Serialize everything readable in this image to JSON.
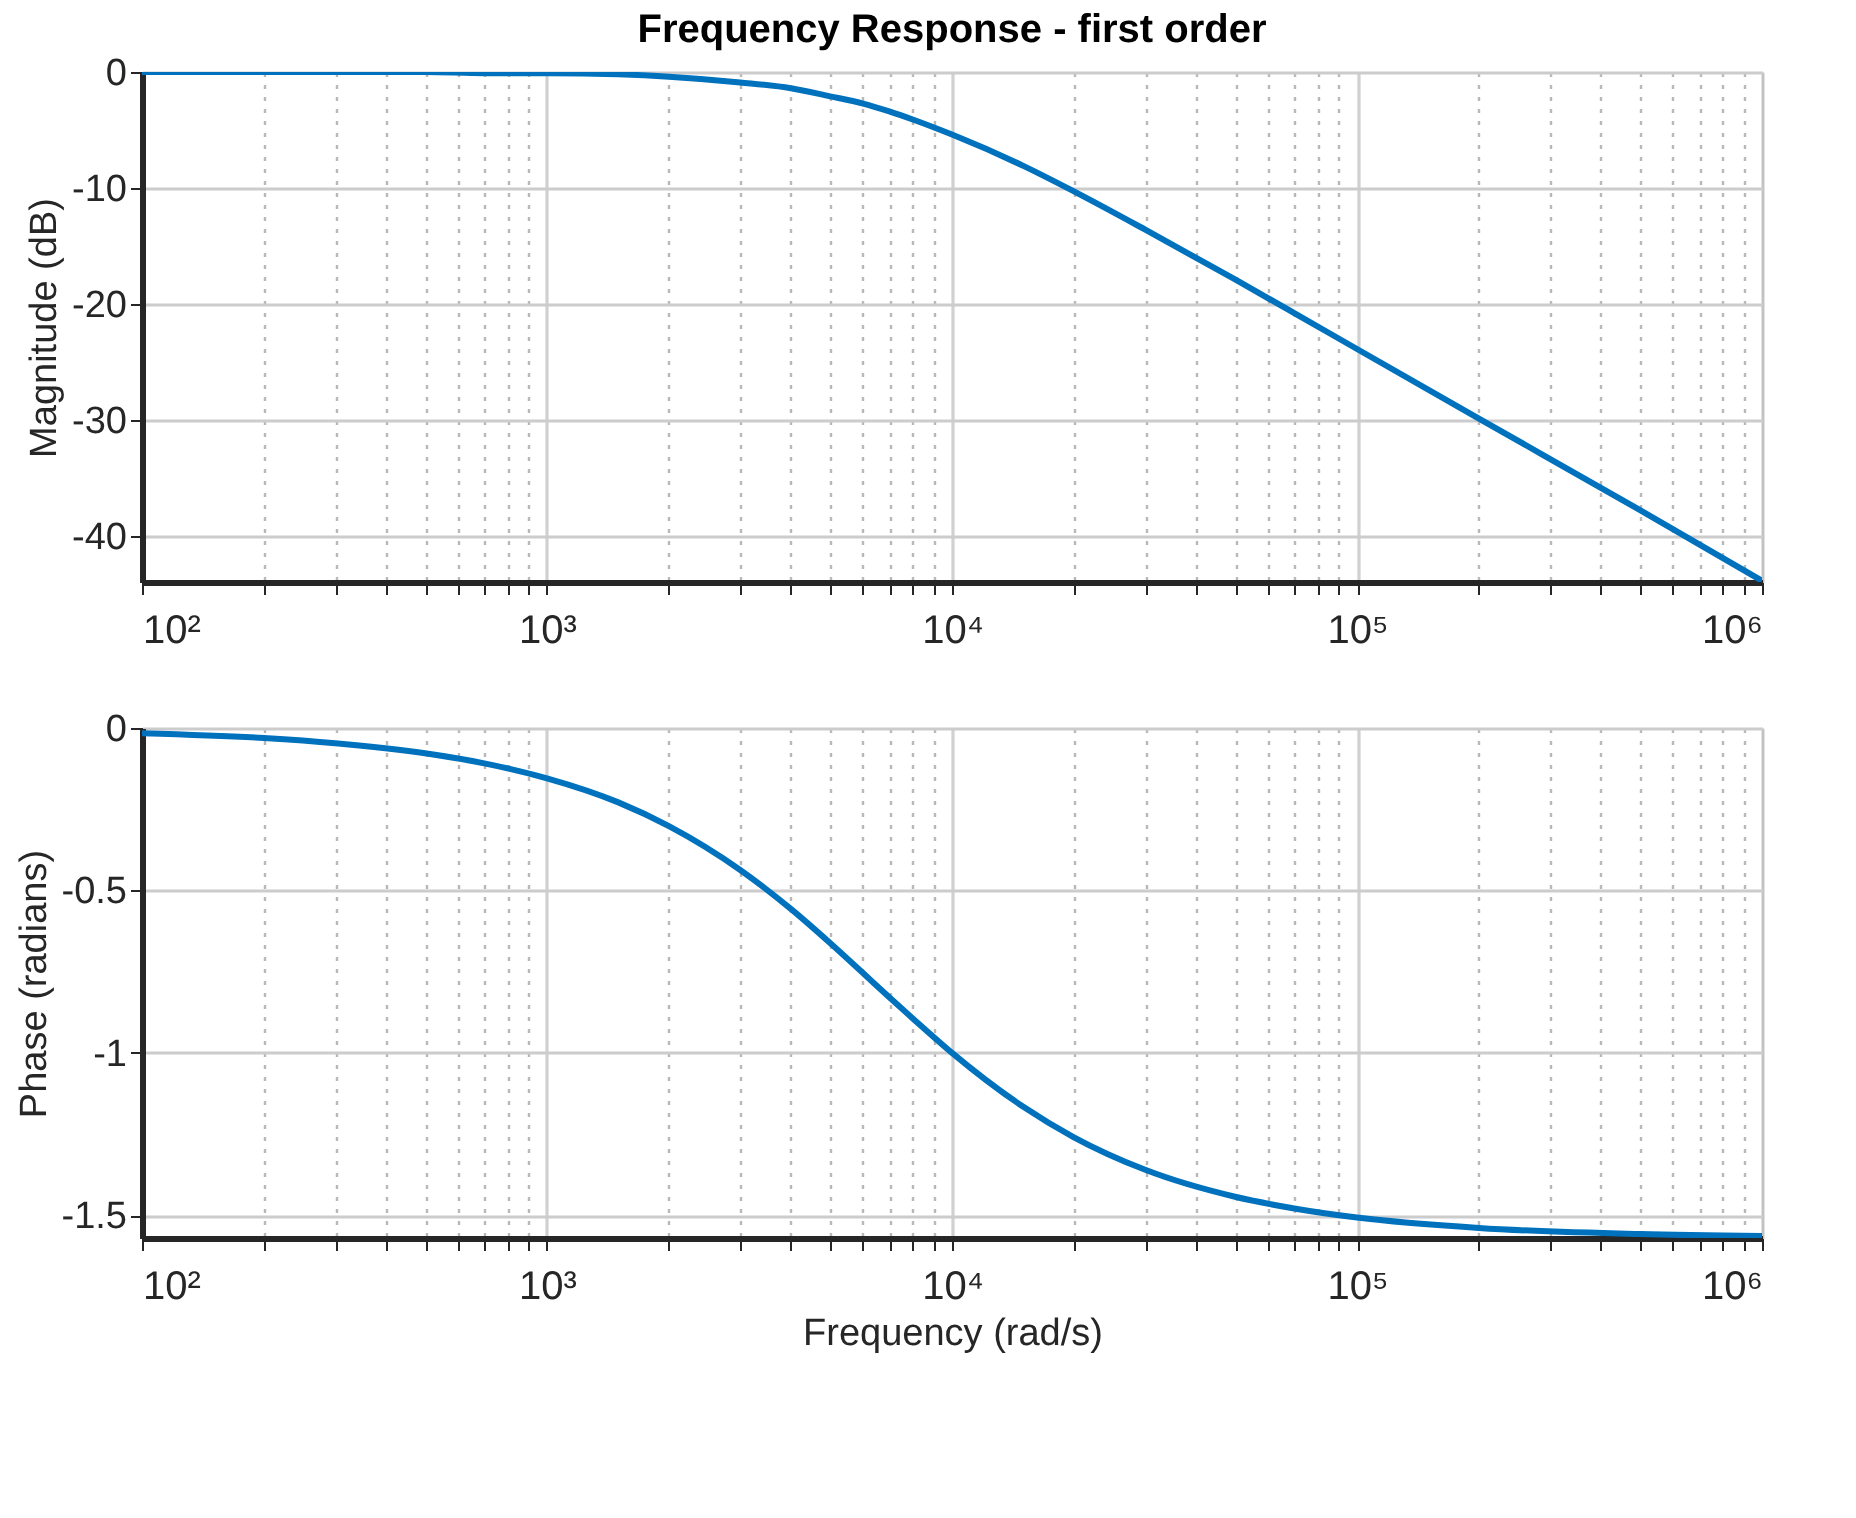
{
  "chart_data": [
    {
      "type": "line",
      "title": "Frequency Response - first order",
      "ylabel": "Magnitude (dB)",
      "log": "x",
      "grid": true,
      "x": [
        100,
        200,
        300,
        500,
        700,
        1000,
        1500,
        2000,
        3000,
        4000,
        5000,
        6000,
        7000,
        8000,
        10000,
        15000,
        20000,
        30000,
        50000,
        70000,
        100000,
        200000,
        500000,
        1000000
      ],
      "series": [
        {
          "color": "#0072bd",
          "values": [
            0.0,
            0.0,
            0.0,
            0.0,
            -0.1,
            -0.1,
            -0.2,
            -0.4,
            -0.9,
            -1.4,
            -2.1,
            -2.7,
            -3.4,
            -4.1,
            -5.4,
            -8.1,
            -10.3,
            -13.6,
            -17.9,
            -20.8,
            -23.9,
            -29.9,
            -37.8,
            -43.9
          ]
        }
      ],
      "xlim": [
        100,
        1000000
      ],
      "ylim": [
        -44,
        0
      ],
      "xticks": [
        {
          "value": 100,
          "label": "10²"
        },
        {
          "value": 200,
          "label": null
        },
        {
          "value": 300,
          "label": null
        },
        {
          "value": 400,
          "label": null
        },
        {
          "value": 500,
          "label": null
        },
        {
          "value": 600,
          "label": null
        },
        {
          "value": 700,
          "label": null
        },
        {
          "value": 800,
          "label": null
        },
        {
          "value": 900,
          "label": null
        },
        {
          "value": 1000,
          "label": "10³"
        },
        {
          "value": 2000,
          "label": null
        },
        {
          "value": 3000,
          "label": null
        },
        {
          "value": 4000,
          "label": null
        },
        {
          "value": 5000,
          "label": null
        },
        {
          "value": 6000,
          "label": null
        },
        {
          "value": 7000,
          "label": null
        },
        {
          "value": 8000,
          "label": null
        },
        {
          "value": 9000,
          "label": null
        },
        {
          "value": 10000,
          "label": "10⁴"
        },
        {
          "value": 20000,
          "label": null
        },
        {
          "value": 30000,
          "label": null
        },
        {
          "value": 40000,
          "label": null
        },
        {
          "value": 50000,
          "label": null
        },
        {
          "value": 60000,
          "label": null
        },
        {
          "value": 70000,
          "label": null
        },
        {
          "value": 80000,
          "label": null
        },
        {
          "value": 90000,
          "label": null
        },
        {
          "value": 100000,
          "label": "10⁵"
        },
        {
          "value": 200000,
          "label": null
        },
        {
          "value": 300000,
          "label": null
        },
        {
          "value": 400000,
          "label": null
        },
        {
          "value": 500000,
          "label": null
        },
        {
          "value": 600000,
          "label": null
        },
        {
          "value": 700000,
          "label": null
        },
        {
          "value": 800000,
          "label": null
        },
        {
          "value": 900000,
          "label": null
        },
        {
          "value": 1000000,
          "label": "10⁶"
        }
      ],
      "yticks": [
        -40,
        -30,
        -20,
        -10,
        0
      ]
    },
    {
      "type": "line",
      "xlabel": "Frequency (rad/s)",
      "ylabel": "Phase (radians)",
      "log": "x",
      "grid": true,
      "x": [
        100,
        200,
        300,
        500,
        700,
        1000,
        1500,
        2000,
        3000,
        4000,
        5000,
        6000,
        7000,
        8000,
        10000,
        15000,
        20000,
        30000,
        50000,
        70000,
        100000,
        200000,
        500000,
        1000000
      ],
      "series": [
        {
          "color": "#0072bd",
          "values": [
            -0.016,
            -0.031,
            -0.047,
            -0.078,
            -0.109,
            -0.155,
            -0.229,
            -0.302,
            -0.437,
            -0.557,
            -0.662,
            -0.752,
            -0.829,
            -0.894,
            -1.0,
            -1.166,
            -1.26,
            -1.36,
            -1.443,
            -1.479,
            -1.507,
            -1.539,
            -1.558,
            -1.564
          ]
        }
      ],
      "xlim": [
        100,
        1000000
      ],
      "ylim": [
        -1.57,
        0
      ],
      "xticks": [
        {
          "value": 100,
          "label": "10²"
        },
        {
          "value": 200,
          "label": null
        },
        {
          "value": 300,
          "label": null
        },
        {
          "value": 400,
          "label": null
        },
        {
          "value": 500,
          "label": null
        },
        {
          "value": 600,
          "label": null
        },
        {
          "value": 700,
          "label": null
        },
        {
          "value": 800,
          "label": null
        },
        {
          "value": 900,
          "label": null
        },
        {
          "value": 1000,
          "label": "10³"
        },
        {
          "value": 2000,
          "label": null
        },
        {
          "value": 3000,
          "label": null
        },
        {
          "value": 4000,
          "label": null
        },
        {
          "value": 5000,
          "label": null
        },
        {
          "value": 6000,
          "label": null
        },
        {
          "value": 7000,
          "label": null
        },
        {
          "value": 8000,
          "label": null
        },
        {
          "value": 9000,
          "label": null
        },
        {
          "value": 10000,
          "label": "10⁴"
        },
        {
          "value": 20000,
          "label": null
        },
        {
          "value": 30000,
          "label": null
        },
        {
          "value": 40000,
          "label": null
        },
        {
          "value": 50000,
          "label": null
        },
        {
          "value": 60000,
          "label": null
        },
        {
          "value": 70000,
          "label": null
        },
        {
          "value": 80000,
          "label": null
        },
        {
          "value": 90000,
          "label": null
        },
        {
          "value": 100000,
          "label": "10⁵"
        },
        {
          "value": 200000,
          "label": null
        },
        {
          "value": 300000,
          "label": null
        },
        {
          "value": 400000,
          "label": null
        },
        {
          "value": 500000,
          "label": null
        },
        {
          "value": 600000,
          "label": null
        },
        {
          "value": 700000,
          "label": null
        },
        {
          "value": 800000,
          "label": null
        },
        {
          "value": 900000,
          "label": null
        },
        {
          "value": 1000000,
          "label": "10⁶"
        }
      ],
      "yticks": [
        -1.5,
        -1,
        -0.5,
        0
      ]
    }
  ]
}
